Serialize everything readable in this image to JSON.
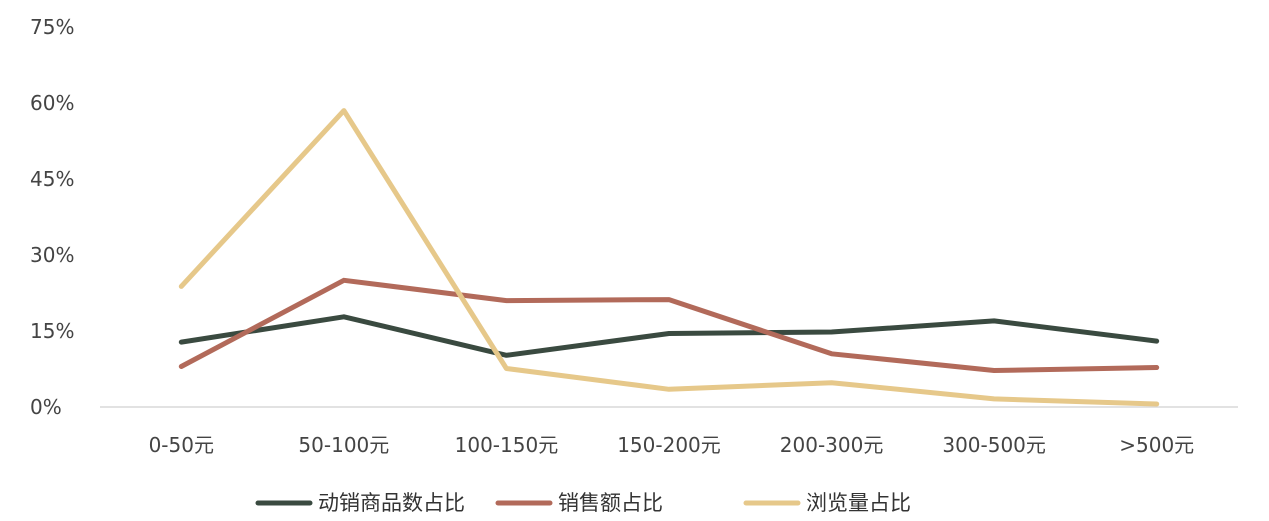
{
  "chart_data": {
    "type": "line",
    "categories": [
      "0-50元",
      "50-100元",
      "100-150元",
      "150-200元",
      "200-300元",
      "300-500元",
      ">500元"
    ],
    "ylim": [
      0,
      75
    ],
    "yticks": [
      0,
      15,
      30,
      45,
      60,
      75
    ],
    "ytick_labels": [
      "0%",
      "15%",
      "30%",
      "45%",
      "60%",
      "75%"
    ],
    "grid": false,
    "legend_position": "bottom",
    "series": [
      {
        "name": "动销商品数占比",
        "color": "#3a4a40",
        "values": [
          12.8,
          17.8,
          10.2,
          14.5,
          14.8,
          17.0,
          13.0
        ]
      },
      {
        "name": "销售额占比",
        "color": "#b26a5a",
        "values": [
          8.0,
          25.0,
          21.0,
          21.2,
          10.5,
          7.2,
          7.8
        ]
      },
      {
        "name": "浏览量占比",
        "color": "#e6c88a",
        "values": [
          23.8,
          58.5,
          7.6,
          3.5,
          4.8,
          1.6,
          0.6
        ]
      }
    ]
  }
}
